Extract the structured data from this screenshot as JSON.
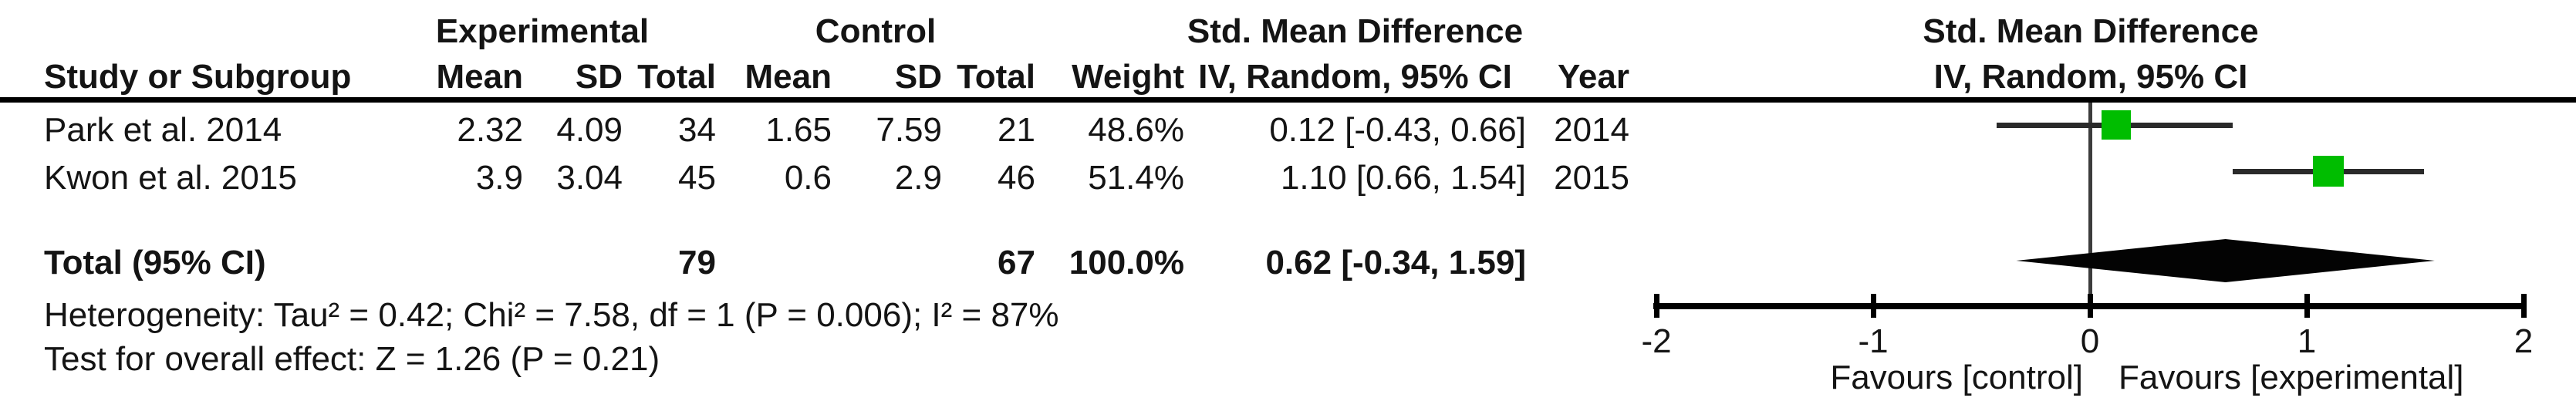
{
  "table": {
    "group_headers": {
      "experimental": "Experimental",
      "control": "Control",
      "smd": "Std. Mean Difference"
    },
    "col_headers": {
      "study": "Study or Subgroup",
      "mean_e": "Mean",
      "sd_e": "SD",
      "total_e": "Total",
      "mean_c": "Mean",
      "sd_c": "SD",
      "total_c": "Total",
      "weight": "Weight",
      "ci": "IV, Random, 95% CI",
      "year": "Year"
    },
    "rows": [
      {
        "study": "Park et al. 2014",
        "mean_e": "2.32",
        "sd_e": "4.09",
        "total_e": "34",
        "mean_c": "1.65",
        "sd_c": "7.59",
        "total_c": "21",
        "weight": "48.6%",
        "ci": "0.12 [-0.43, 0.66]",
        "year": "2014"
      },
      {
        "study": "Kwon et al. 2015",
        "mean_e": "3.9",
        "sd_e": "3.04",
        "total_e": "45",
        "mean_c": "0.6",
        "sd_c": "2.9",
        "total_c": "46",
        "weight": "51.4%",
        "ci": "1.10 [0.66, 1.54]",
        "year": "2015"
      }
    ],
    "total_row": {
      "label": "Total (95% CI)",
      "total_e": "79",
      "total_c": "67",
      "weight": "100.0%",
      "ci": "0.62 [-0.34, 1.59]"
    },
    "heterogeneity": "Heterogeneity: Tau² = 0.42; Chi² = 7.58, df = 1 (P = 0.006); I² = 87%",
    "overall_effect": "Test for overall effect: Z = 1.26 (P = 0.21)"
  },
  "plot": {
    "header_line1": "Std. Mean Difference",
    "header_line2": "IV, Random, 95% CI",
    "favours_left": "Favours [control]",
    "favours_right": "Favours [experimental]"
  },
  "chart_data": {
    "type": "forest",
    "effect_measure": "Std. Mean Difference",
    "method": "IV, Random, 95% CI",
    "axis_range": [
      -2,
      2
    ],
    "axis_ticks": [
      -2,
      -1,
      0,
      1,
      2
    ],
    "axis_tick_labels": [
      "-2",
      "-1",
      "0",
      "1",
      "2"
    ],
    "studies": [
      {
        "name": "Park et al. 2014",
        "year": 2014,
        "mean_exp": 2.32,
        "sd_exp": 4.09,
        "n_exp": 34,
        "mean_ctrl": 1.65,
        "sd_ctrl": 7.59,
        "n_ctrl": 21,
        "weight_pct": 48.6,
        "estimate": 0.12,
        "ci_lower": -0.43,
        "ci_upper": 0.66
      },
      {
        "name": "Kwon et al. 2015",
        "year": 2015,
        "mean_exp": 3.9,
        "sd_exp": 3.04,
        "n_exp": 45,
        "mean_ctrl": 0.6,
        "sd_ctrl": 2.9,
        "n_ctrl": 46,
        "weight_pct": 51.4,
        "estimate": 1.1,
        "ci_lower": 0.66,
        "ci_upper": 1.54
      }
    ],
    "total": {
      "n_exp": 79,
      "n_ctrl": 67,
      "weight_pct": 100.0,
      "estimate": 0.62,
      "ci_lower": -0.34,
      "ci_upper": 1.59
    },
    "heterogeneity": {
      "tau2": 0.42,
      "chi2": 7.58,
      "df": 1,
      "p": 0.006,
      "i2_pct": 87
    },
    "overall_effect": {
      "z": 1.26,
      "p": 0.21
    },
    "legend": {
      "left": "Favours [control]",
      "right": "Favours [experimental]"
    },
    "colors": {
      "square": "#00bd00",
      "diamond": "#030303",
      "ci_line": "#2a2a2a",
      "axis": "#000000",
      "zero_line": "#3c3c3c"
    }
  }
}
